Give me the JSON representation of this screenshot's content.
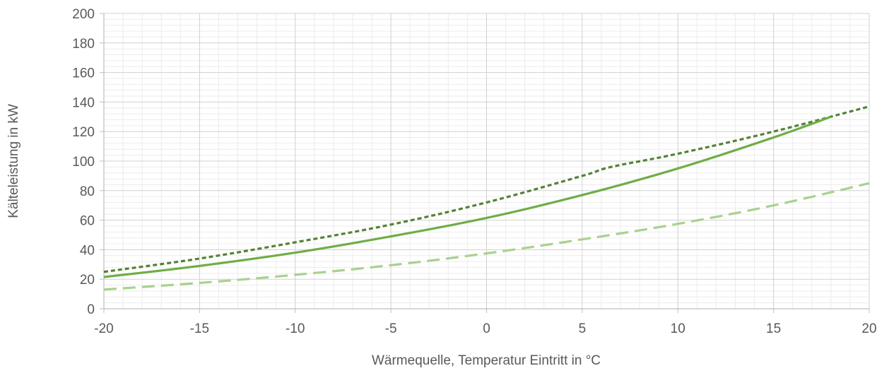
{
  "chart_data": {
    "type": "line",
    "xlabel": "Wärmequelle, Temperatur Eintritt in °C",
    "ylabel": "Kälteleistung in kW",
    "xlim": [
      -20,
      20
    ],
    "ylim": [
      0,
      200
    ],
    "x_major_step": 5,
    "y_major_step": 20,
    "x_minor_step": 1,
    "y_minor_step": 4,
    "x_ticks": [
      "-20",
      "-15",
      "-10",
      "-5",
      "0",
      "5",
      "10",
      "15",
      "20"
    ],
    "y_ticks": [
      "0",
      "20",
      "40",
      "60",
      "80",
      "100",
      "120",
      "140",
      "160",
      "180",
      "200"
    ],
    "grid": "major and minor",
    "legend": "none",
    "series": [
      {
        "style": "dotted",
        "color": "#548235",
        "x": [
          -20,
          -15,
          -10,
          -5,
          0,
          5,
          6.5,
          10,
          15,
          20
        ],
        "y": [
          25,
          34,
          45,
          57,
          72,
          90,
          96,
          105,
          120,
          137
        ]
      },
      {
        "style": "solid",
        "color": "#70ad47",
        "x": [
          -20,
          -15,
          -10,
          -5,
          0,
          5,
          10,
          15,
          18
        ],
        "y": [
          21.5,
          29,
          38,
          49,
          61.5,
          77,
          95,
          116,
          130
        ]
      },
      {
        "style": "dashed",
        "color": "#a9d18e",
        "x": [
          -20,
          -15,
          -10,
          -5,
          0,
          5,
          10,
          15,
          20
        ],
        "y": [
          13,
          17.5,
          23,
          29.5,
          37.5,
          47,
          57.5,
          70,
          85
        ]
      }
    ]
  }
}
